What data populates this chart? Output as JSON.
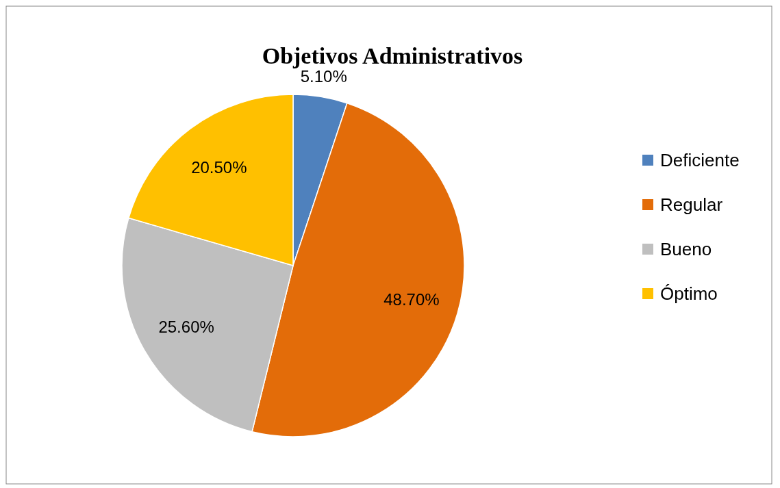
{
  "chart_data": {
    "type": "pie",
    "title": "Objetivos Administrativos",
    "categories": [
      "Deficiente",
      "Regular",
      "Bueno",
      "Óptimo"
    ],
    "values": [
      5.1,
      48.7,
      25.6,
      20.5
    ],
    "value_labels": [
      "5.10%",
      "48.70%",
      "25.60%",
      "20.50%"
    ],
    "colors": [
      "#4f81bd",
      "#e36c09",
      "#bfbfbf",
      "#ffc000"
    ],
    "legend": "right"
  }
}
